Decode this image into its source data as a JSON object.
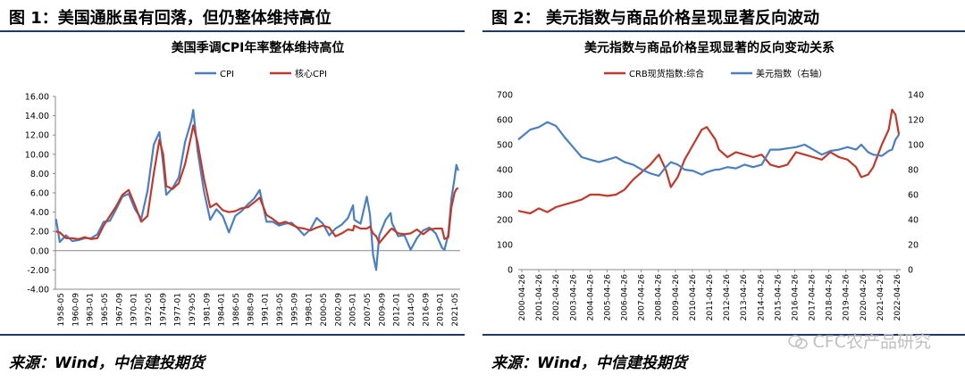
{
  "left": {
    "fig_title": "图 1：美国通胀虽有回落，但仍整体维持高位",
    "source": "来源：Wind，中信建投期货"
  },
  "right": {
    "fig_title": "图 2： 美元指数与商品价格呈现显著反向波动",
    "source": "来源：Wind，中信建投期货"
  },
  "watermark": "CFC农产品研究",
  "colors": {
    "blue": "#4a7fc1",
    "red": "#c0392b",
    "rule": "#1f3864",
    "grid": "#d9d9d9"
  },
  "chart_data": [
    {
      "type": "line",
      "title": "美国季调CPI年率整体维持高位",
      "ylim": [
        -4,
        16
      ],
      "yticks": [
        "16.00",
        "14.00",
        "12.00",
        "10.00",
        "8.00",
        "6.00",
        "4.00",
        "2.00",
        "0.00",
        "-2.00",
        "-4.00"
      ],
      "xticks": [
        "1958-05",
        "1960-09",
        "1963-01",
        "1965-05",
        "1967-09",
        "1970-01",
        "1972-05",
        "1974-09",
        "1977-01",
        "1979-05",
        "1981-09",
        "1984-01",
        "1986-05",
        "1988-09",
        "1991-01",
        "1993-05",
        "1995-09",
        "1998-01",
        "2000-05",
        "2002-09",
        "2005-01",
        "2007-05",
        "2009-09",
        "2012-01",
        "2014-05",
        "2016-09",
        "2019-01",
        "2021-05"
      ],
      "x": [
        1958.4,
        1959,
        1960,
        1961,
        1962,
        1963,
        1964,
        1965,
        1966,
        1967,
        1968,
        1969,
        1970,
        1971,
        1972,
        1973,
        1974,
        1974.9,
        1975.5,
        1976,
        1977,
        1978,
        1979,
        1980,
        1980.3,
        1981,
        1982,
        1983,
        1984,
        1985,
        1986,
        1987,
        1988,
        1989,
        1990,
        1990.9,
        1992,
        1993,
        1994,
        1995,
        1996,
        1997,
        1998,
        1999,
        2000,
        2001,
        2002,
        2003,
        2004,
        2005,
        2005.8,
        2006,
        2007,
        2008,
        2008.5,
        2009,
        2009.5,
        2010,
        2011,
        2011.8,
        2012,
        2013,
        2014,
        2015,
        2016,
        2017,
        2018,
        2019,
        2020,
        2020.4,
        2021,
        2021.5,
        2022,
        2022.3,
        2022.6
      ],
      "series": [
        {
          "name": "CPI",
          "color": "#4a7fc1",
          "values": [
            3.3,
            0.9,
            1.6,
            1.0,
            1.1,
            1.3,
            1.3,
            1.7,
            3.0,
            3.1,
            4.3,
            5.6,
            5.9,
            4.3,
            3.3,
            6.2,
            11.0,
            12.3,
            9.0,
            5.8,
            6.5,
            7.6,
            11.3,
            13.5,
            14.6,
            10.3,
            6.2,
            3.2,
            4.3,
            3.6,
            1.9,
            3.6,
            4.1,
            4.8,
            5.4,
            6.3,
            3.0,
            3.0,
            2.6,
            2.8,
            2.9,
            2.3,
            1.6,
            2.2,
            3.4,
            2.8,
            1.6,
            2.3,
            2.7,
            3.4,
            4.7,
            3.2,
            2.8,
            5.6,
            3.8,
            -0.4,
            -2.0,
            1.6,
            3.2,
            3.9,
            2.9,
            1.5,
            1.6,
            0.1,
            1.3,
            2.1,
            2.4,
            1.8,
            0.3,
            0.1,
            1.7,
            5.4,
            7.5,
            8.9,
            8.3
          ]
        },
        {
          "name": "核心CPI",
          "color": "#c0392b",
          "values": [
            2.0,
            1.9,
            1.3,
            1.3,
            1.2,
            1.4,
            1.2,
            1.3,
            2.6,
            3.6,
            4.6,
            5.8,
            6.3,
            4.7,
            3.0,
            3.6,
            8.0,
            11.5,
            10.0,
            6.7,
            6.4,
            7.0,
            9.0,
            12.0,
            13.0,
            11.2,
            7.5,
            4.5,
            4.9,
            4.2,
            4.0,
            4.1,
            4.4,
            4.5,
            5.0,
            5.5,
            3.7,
            3.3,
            2.8,
            3.0,
            2.7,
            2.4,
            2.3,
            2.1,
            2.4,
            2.6,
            2.4,
            1.5,
            1.8,
            2.2,
            2.1,
            2.6,
            2.3,
            2.3,
            2.5,
            1.8,
            1.5,
            0.8,
            1.6,
            2.2,
            2.3,
            1.8,
            1.7,
            1.8,
            2.2,
            1.7,
            2.2,
            2.3,
            2.3,
            1.2,
            1.4,
            4.5,
            6.0,
            6.4,
            6.5
          ]
        }
      ]
    },
    {
      "type": "line",
      "title": "美元指数与商品价格呈现显著的反向变动关系",
      "ylim_left": [
        0,
        700
      ],
      "ylim_right": [
        0,
        140
      ],
      "yticks_left": [
        "700",
        "600",
        "500",
        "400",
        "300",
        "200",
        "100",
        "0"
      ],
      "yticks_right": [
        "140",
        "120",
        "100",
        "80",
        "60",
        "40",
        "20",
        "0"
      ],
      "xticks": [
        "2000-04-26",
        "2001-04-26",
        "2002-04-26",
        "2003-04-26",
        "2004-04-26",
        "2005-04-26",
        "2006-04-26",
        "2007-04-26",
        "2008-04-26",
        "2009-04-26",
        "2010-04-26",
        "2011-04-26",
        "2012-04-26",
        "2013-04-26",
        "2014-04-26",
        "2015-04-26",
        "2016-04-26",
        "2017-04-26",
        "2018-04-26",
        "2019-04-26",
        "2020-04-26",
        "2021-04-26",
        "2022-04-26"
      ],
      "x": [
        2000.3,
        2001,
        2001.5,
        2002,
        2002.5,
        2003,
        2003.5,
        2004,
        2004.5,
        2005,
        2005.5,
        2006,
        2006.5,
        2007,
        2007.5,
        2008,
        2008.5,
        2008.9,
        2009.2,
        2009.6,
        2010,
        2010.5,
        2011,
        2011.3,
        2011.8,
        2012,
        2012.5,
        2013,
        2013.5,
        2014,
        2014.5,
        2015,
        2015.5,
        2016,
        2016.5,
        2017,
        2017.5,
        2018,
        2018.5,
        2019,
        2019.5,
        2020,
        2020.3,
        2020.7,
        2021,
        2021.5,
        2021.9,
        2022.1,
        2022.3,
        2022.5
      ],
      "series": [
        {
          "name": "CRB现货指数:综合",
          "axis": "left",
          "color": "#c0392b",
          "values": [
            235,
            225,
            245,
            230,
            250,
            260,
            270,
            280,
            300,
            300,
            295,
            300,
            320,
            360,
            390,
            420,
            460,
            400,
            330,
            370,
            440,
            500,
            560,
            570,
            520,
            480,
            450,
            470,
            460,
            450,
            460,
            420,
            410,
            420,
            470,
            460,
            450,
            440,
            470,
            450,
            440,
            410,
            370,
            380,
            410,
            500,
            560,
            640,
            620,
            540
          ]
        },
        {
          "name": "美元指数（右轴）",
          "axis": "right",
          "color": "#4a7fc1",
          "values": [
            104,
            112,
            114,
            118,
            115,
            106,
            98,
            90,
            88,
            86,
            88,
            90,
            86,
            84,
            80,
            77,
            75,
            82,
            86,
            84,
            80,
            79,
            76,
            78,
            80,
            80,
            82,
            81,
            84,
            82,
            84,
            96,
            96,
            97,
            98,
            100,
            96,
            92,
            95,
            96,
            98,
            96,
            100,
            94,
            92,
            91,
            95,
            96,
            104,
            108
          ]
        }
      ]
    }
  ]
}
